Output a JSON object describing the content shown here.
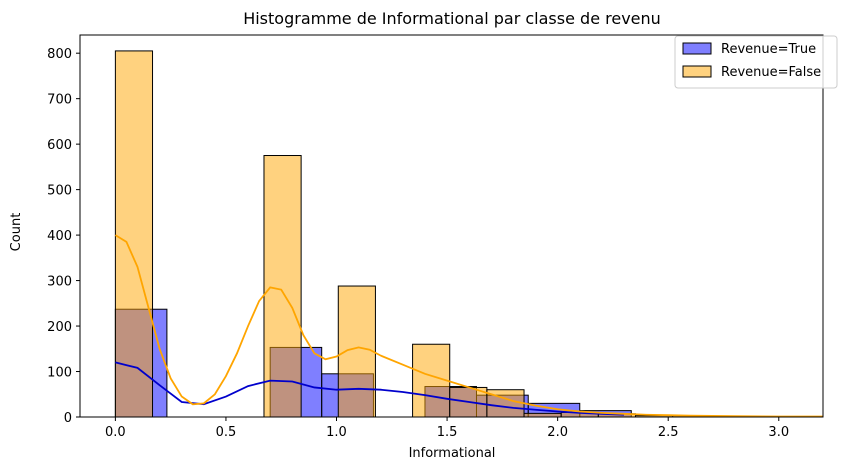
{
  "chart_data": {
    "type": "histogram",
    "title": "Histogramme de Informational par classe de revenu",
    "xlabel": "Informational",
    "ylabel": "Count",
    "xlim": [
      -0.16,
      3.2
    ],
    "ylim": [
      0,
      840
    ],
    "xticks": [
      0.0,
      0.5,
      1.0,
      1.5,
      2.0,
      2.5,
      3.0
    ],
    "xtick_labels": [
      "0.0",
      "0.5",
      "1.0",
      "1.5",
      "2.0",
      "2.5",
      "3.0"
    ],
    "yticks": [
      0,
      100,
      200,
      300,
      400,
      500,
      600,
      700,
      800
    ],
    "ytick_labels": [
      "0",
      "100",
      "200",
      "300",
      "400",
      "500",
      "600",
      "700",
      "800"
    ],
    "grid": false,
    "legend_position": "top-right",
    "series": [
      {
        "name": "Revenue=True",
        "color": "#0000ff",
        "line_color": "#0000cc",
        "bins": [
          {
            "x0": 0.0,
            "x1": 0.233,
            "count": 237
          },
          {
            "x0": 0.233,
            "x1": 0.467,
            "count": 0
          },
          {
            "x0": 0.467,
            "x1": 0.7,
            "count": 0
          },
          {
            "x0": 0.7,
            "x1": 0.933,
            "count": 153
          },
          {
            "x0": 0.933,
            "x1": 1.167,
            "count": 95
          },
          {
            "x0": 1.167,
            "x1": 1.4,
            "count": 0
          },
          {
            "x0": 1.4,
            "x1": 1.633,
            "count": 67
          },
          {
            "x0": 1.633,
            "x1": 1.867,
            "count": 48
          },
          {
            "x0": 1.867,
            "x1": 2.1,
            "count": 30
          },
          {
            "x0": 2.1,
            "x1": 2.333,
            "count": 14
          }
        ],
        "kde": [
          [
            0.0,
            120
          ],
          [
            0.1,
            108
          ],
          [
            0.2,
            70
          ],
          [
            0.3,
            33
          ],
          [
            0.4,
            28
          ],
          [
            0.5,
            45
          ],
          [
            0.6,
            68
          ],
          [
            0.7,
            80
          ],
          [
            0.8,
            78
          ],
          [
            0.9,
            65
          ],
          [
            1.0,
            60
          ],
          [
            1.1,
            62
          ],
          [
            1.2,
            60
          ],
          [
            1.3,
            55
          ],
          [
            1.4,
            48
          ],
          [
            1.5,
            40
          ],
          [
            1.6,
            33
          ],
          [
            1.7,
            26
          ],
          [
            1.8,
            20
          ],
          [
            1.9,
            16
          ],
          [
            2.0,
            12
          ],
          [
            2.1,
            9
          ],
          [
            2.2,
            7
          ],
          [
            2.3,
            5
          ]
        ]
      },
      {
        "name": "Revenue=False",
        "color": "#ffa500",
        "line_color": "#ffa500",
        "bins": [
          {
            "x0": 0.0,
            "x1": 0.168,
            "count": 805
          },
          {
            "x0": 0.168,
            "x1": 0.336,
            "count": 0
          },
          {
            "x0": 0.336,
            "x1": 0.504,
            "count": 0
          },
          {
            "x0": 0.504,
            "x1": 0.672,
            "count": 0
          },
          {
            "x0": 0.672,
            "x1": 0.84,
            "count": 575
          },
          {
            "x0": 0.84,
            "x1": 1.008,
            "count": 0
          },
          {
            "x0": 1.008,
            "x1": 1.176,
            "count": 288
          },
          {
            "x0": 1.176,
            "x1": 1.344,
            "count": 0
          },
          {
            "x0": 1.344,
            "x1": 1.512,
            "count": 160
          },
          {
            "x0": 1.512,
            "x1": 1.68,
            "count": 65
          },
          {
            "x0": 1.68,
            "x1": 1.848,
            "count": 60
          },
          {
            "x0": 1.848,
            "x1": 2.016,
            "count": 8
          },
          {
            "x0": 2.016,
            "x1": 2.184,
            "count": 10
          },
          {
            "x0": 2.184,
            "x1": 2.352,
            "count": 7
          },
          {
            "x0": 2.352,
            "x1": 2.52,
            "count": 3
          },
          {
            "x0": 2.52,
            "x1": 2.688,
            "count": 3
          },
          {
            "x0": 2.688,
            "x1": 2.856,
            "count": 2
          },
          {
            "x0": 2.856,
            "x1": 3.024,
            "count": 1
          },
          {
            "x0": 3.024,
            "x1": 3.192,
            "count": 1
          }
        ],
        "kde": [
          [
            0.0,
            400
          ],
          [
            0.05,
            385
          ],
          [
            0.1,
            330
          ],
          [
            0.15,
            240
          ],
          [
            0.2,
            150
          ],
          [
            0.25,
            85
          ],
          [
            0.3,
            45
          ],
          [
            0.35,
            28
          ],
          [
            0.4,
            30
          ],
          [
            0.45,
            50
          ],
          [
            0.5,
            90
          ],
          [
            0.55,
            140
          ],
          [
            0.6,
            200
          ],
          [
            0.65,
            255
          ],
          [
            0.7,
            285
          ],
          [
            0.75,
            280
          ],
          [
            0.8,
            240
          ],
          [
            0.85,
            180
          ],
          [
            0.9,
            140
          ],
          [
            0.95,
            127
          ],
          [
            1.0,
            133
          ],
          [
            1.05,
            147
          ],
          [
            1.1,
            153
          ],
          [
            1.15,
            148
          ],
          [
            1.2,
            135
          ],
          [
            1.3,
            115
          ],
          [
            1.4,
            95
          ],
          [
            1.5,
            80
          ],
          [
            1.6,
            65
          ],
          [
            1.7,
            50
          ],
          [
            1.8,
            35
          ],
          [
            1.9,
            25
          ],
          [
            2.0,
            17
          ],
          [
            2.1,
            12
          ],
          [
            2.2,
            9
          ],
          [
            2.3,
            7
          ],
          [
            2.4,
            5
          ],
          [
            2.5,
            4
          ],
          [
            2.6,
            3
          ],
          [
            2.8,
            2
          ],
          [
            3.0,
            1
          ],
          [
            3.2,
            1
          ]
        ]
      }
    ]
  }
}
